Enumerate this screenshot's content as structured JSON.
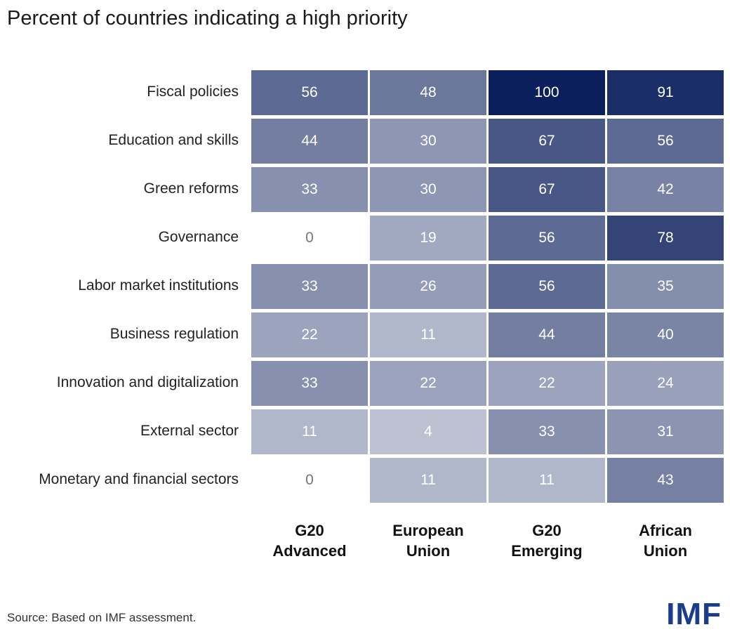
{
  "title": "Percent of countries indicating a high priority",
  "source": "Source: Based on IMF assessment.",
  "logo": "IMF",
  "colors": {
    "max": "#0b1f5c",
    "min": "#ffffff"
  },
  "chart_data": {
    "type": "heatmap",
    "title": "Percent of countries indicating a high priority",
    "rows": [
      "Fiscal policies",
      "Education and skills",
      "Green reforms",
      "Governance",
      "Labor market institutions",
      "Business regulation",
      "Innovation and digitalization",
      "External sector",
      "Monetary and financial sectors"
    ],
    "columns": [
      {
        "line1": "G20",
        "line2": "Advanced"
      },
      {
        "line1": "European",
        "line2": "Union"
      },
      {
        "line1": "G20",
        "line2": "Emerging"
      },
      {
        "line1": "African",
        "line2": "Union"
      }
    ],
    "values": [
      [
        56,
        48,
        100,
        91
      ],
      [
        44,
        30,
        67,
        56
      ],
      [
        33,
        30,
        67,
        42
      ],
      [
        0,
        19,
        56,
        78
      ],
      [
        33,
        26,
        56,
        35
      ],
      [
        22,
        11,
        44,
        40
      ],
      [
        33,
        22,
        22,
        24
      ],
      [
        11,
        4,
        33,
        31
      ],
      [
        0,
        11,
        11,
        43
      ]
    ]
  }
}
